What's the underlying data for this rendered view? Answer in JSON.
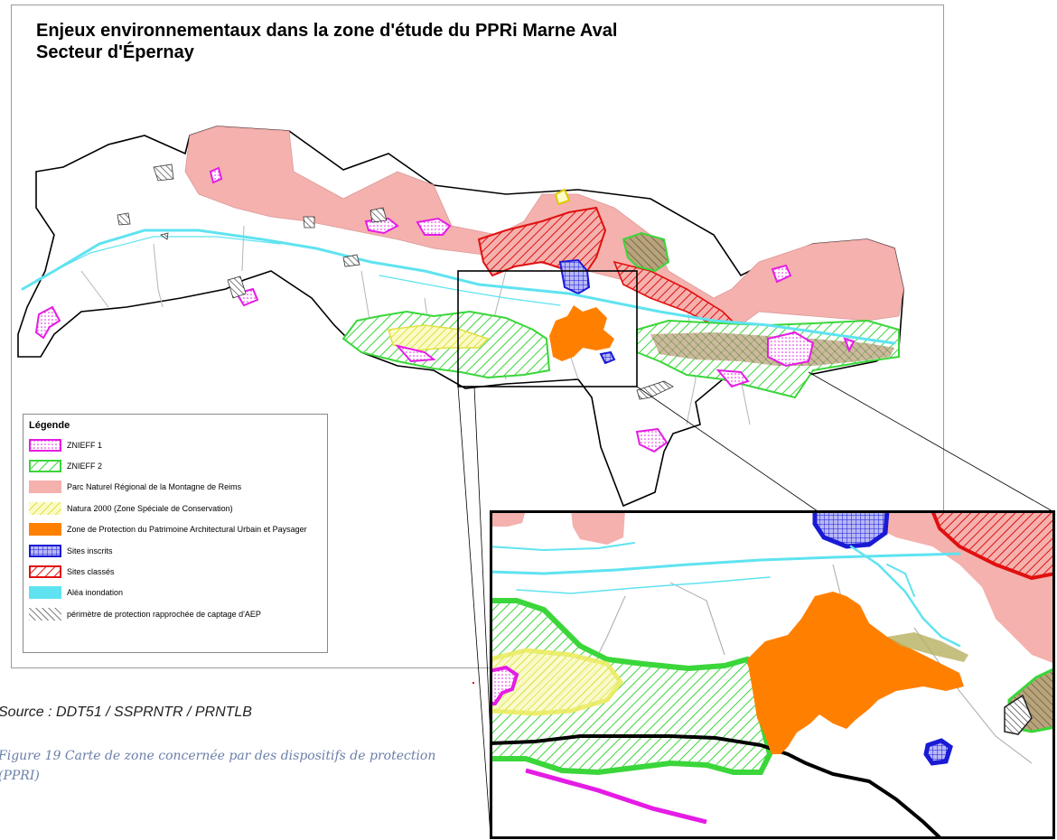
{
  "map": {
    "title_line1": "Enjeux environnementaux dans la zone d'étude du PPRi Marne Aval",
    "title_line2": "Secteur d'Épernay"
  },
  "legend": {
    "title": "Légende",
    "items": [
      {
        "label": "ZNIEFF 1",
        "swatch": "znieff1"
      },
      {
        "label": "ZNIEFF 2",
        "swatch": "znieff2"
      },
      {
        "label": "Parc Naturel Régional de la Montagne de Reims",
        "swatch": "pnr"
      },
      {
        "label": "Natura 2000 (Zone Spéciale de Conservation)",
        "swatch": "natura"
      },
      {
        "label": "Zone de Protection du Patrimoine Architectural Urbain et Paysager",
        "swatch": "zppaup"
      },
      {
        "label": "Sites inscrits",
        "swatch": "inscrits"
      },
      {
        "label": "Sites classés",
        "swatch": "classes"
      },
      {
        "label": "Aléa inondation",
        "swatch": "alea"
      },
      {
        "label": "périmètre de protection rapprochée de captage d'AEP",
        "swatch": "aep"
      }
    ]
  },
  "colors": {
    "znieff1": "#e51ce5",
    "znieff2": "#3ad63a",
    "pnr": "#f4b1ad",
    "natura": "#f3f36a",
    "zppaup": "#ff8000",
    "inscrits": "#1a1ad6",
    "classes": "#e01010",
    "alea": "#5fe3f0",
    "aep": "#333333"
  },
  "source": "Source  : DDT51 / SSPRNTR / PRNTLB",
  "caption": "Figure 19 Carte de zone concernée par des dispositifs de protection (PPRI)"
}
